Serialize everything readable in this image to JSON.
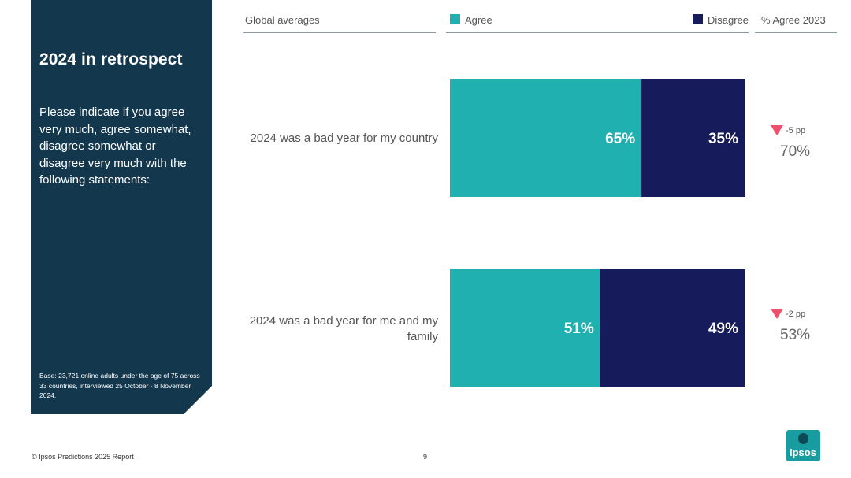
{
  "panel": {
    "title": "2024 in retrospect",
    "question": "Please indicate if you agree very much, agree somewhat, disagree somewhat or disagree very much with the following statements:",
    "base": "Base: 23,721 online adults under the age of 75 across 33 countries, interviewed 25 October - 8 November 2024."
  },
  "header": {
    "global_label": "Global averages",
    "prev_label": "% Agree 2023"
  },
  "colors": {
    "agree": "#20b0b0",
    "disagree": "#151b5b",
    "down": "#f0506e",
    "panel": "#13384e"
  },
  "chart_data": {
    "type": "bar",
    "orientation": "horizontal",
    "stacked": true,
    "categories": [
      "2024 was a bad year for my country",
      "2024 was a bad year for me and my family"
    ],
    "series": [
      {
        "name": "Agree",
        "values": [
          65,
          51
        ]
      },
      {
        "name": "Disagree",
        "values": [
          35,
          49
        ]
      }
    ],
    "data_labels": [
      [
        "65%",
        "51%"
      ],
      [
        "35%",
        "49%"
      ]
    ],
    "xlim": [
      0,
      100
    ],
    "title": "",
    "xlabel": "",
    "ylabel": "",
    "legend": "top"
  },
  "rows": [
    {
      "label": "2024 was a bad year for my country",
      "change": "-5 pp",
      "prev": "70%"
    },
    {
      "label": "2024 was a bad year for me and my family",
      "change": "-2 pp",
      "prev": "53%"
    }
  ],
  "footer": {
    "left": "© Ipsos Predictions 2025 Report",
    "page": "9"
  },
  "logo": {
    "text": "Ipsos"
  }
}
